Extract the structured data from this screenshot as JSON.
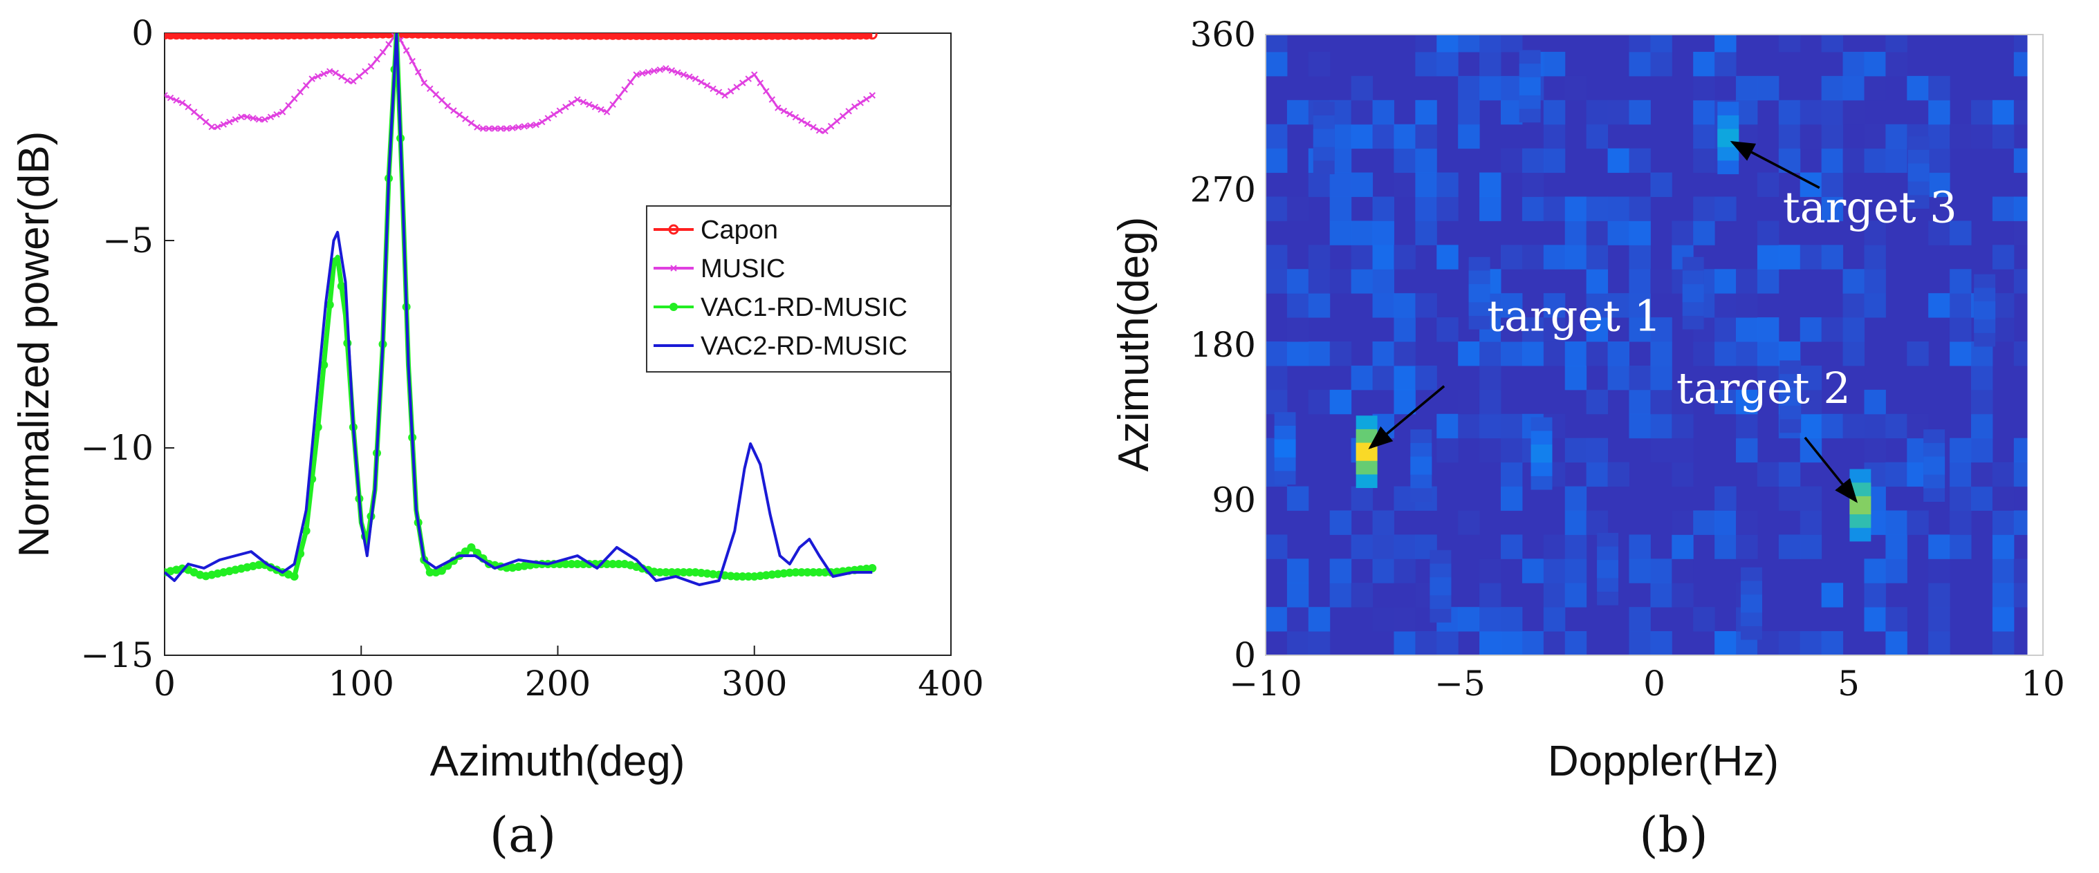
{
  "chart_data": [
    {
      "type": "line",
      "panel_label": "(a)",
      "xlabel": "Azimuth(deg)",
      "ylabel": "Normalized power(dB)",
      "xlim": [
        0,
        400
      ],
      "ylim": [
        -15,
        0
      ],
      "xticks": [
        0,
        100,
        200,
        300,
        400
      ],
      "yticks": [
        0,
        -5,
        -10,
        -15
      ],
      "xtick_labels": [
        "0",
        "100",
        "200",
        "300",
        "400"
      ],
      "ytick_labels": [
        "0",
        "−5",
        "−10",
        "−15"
      ],
      "legend_position": "right-middle",
      "series": [
        {
          "name": "Capon",
          "color": "#ff2020",
          "marker": "circle",
          "x": [
            0,
            60,
            118,
            180,
            240,
            300,
            360
          ],
          "y": [
            -0.03,
            -0.03,
            0,
            -0.03,
            -0.04,
            -0.04,
            -0.03
          ]
        },
        {
          "name": "MUSIC",
          "color": "#e040e0",
          "marker": "x",
          "x": [
            0,
            10,
            25,
            40,
            50,
            60,
            75,
            85,
            95,
            105,
            112,
            118,
            124,
            132,
            145,
            160,
            175,
            190,
            210,
            225,
            240,
            255,
            270,
            285,
            300,
            312,
            320,
            335,
            350,
            360
          ],
          "y": [
            -1.5,
            -1.7,
            -2.3,
            -2.0,
            -2.1,
            -1.9,
            -1.1,
            -0.9,
            -1.2,
            -0.8,
            -0.4,
            0,
            -0.5,
            -1.2,
            -1.8,
            -2.3,
            -2.3,
            -2.2,
            -1.6,
            -1.9,
            -1.0,
            -0.85,
            -1.1,
            -1.5,
            -1.0,
            -1.8,
            -2.0,
            -2.4,
            -1.8,
            -1.5
          ]
        },
        {
          "name": "VAC1-RD-MUSIC",
          "color": "#22ee22",
          "marker": "dot",
          "x": [
            0,
            10,
            20,
            30,
            40,
            50,
            60,
            66,
            72,
            78,
            82,
            86,
            88,
            92,
            96,
            100,
            103,
            107,
            111,
            114,
            118,
            121,
            124,
            128,
            132,
            135,
            140,
            150,
            156,
            165,
            175,
            190,
            205,
            220,
            235,
            250,
            270,
            290,
            300,
            320,
            340,
            360
          ],
          "y": [
            -13.0,
            -12.9,
            -13.1,
            -13.0,
            -12.9,
            -12.8,
            -13.0,
            -13.1,
            -12.0,
            -9.5,
            -7.5,
            -5.6,
            -5.4,
            -6.8,
            -9.5,
            -11.8,
            -12.3,
            -11.0,
            -7.5,
            -3.5,
            0,
            -3.8,
            -8.0,
            -11.5,
            -12.7,
            -13.0,
            -13.0,
            -12.6,
            -12.4,
            -12.8,
            -12.9,
            -12.8,
            -12.8,
            -12.8,
            -12.8,
            -13.0,
            -13.0,
            -13.1,
            -13.1,
            -13.0,
            -13.0,
            -12.9
          ]
        },
        {
          "name": "VAC2-RD-MUSIC",
          "color": "#1a1ad6",
          "marker": "none",
          "x": [
            0,
            5,
            12,
            20,
            28,
            36,
            44,
            52,
            60,
            66,
            72,
            78,
            82,
            86,
            88,
            92,
            96,
            100,
            103,
            107,
            111,
            114,
            118,
            121,
            124,
            128,
            132,
            138,
            150,
            158,
            168,
            180,
            195,
            210,
            220,
            230,
            240,
            250,
            260,
            272,
            282,
            290,
            295,
            298,
            303,
            308,
            313,
            318,
            323,
            328,
            333,
            340,
            350,
            360
          ],
          "y": [
            -13.0,
            -13.2,
            -12.8,
            -12.9,
            -12.7,
            -12.6,
            -12.5,
            -12.8,
            -13.0,
            -12.8,
            -11.5,
            -8.5,
            -6.5,
            -5.0,
            -4.8,
            -6.0,
            -9.5,
            -11.8,
            -12.6,
            -11.0,
            -7.5,
            -3.5,
            0,
            -3.8,
            -8.0,
            -11.5,
            -12.7,
            -12.9,
            -12.6,
            -12.6,
            -12.9,
            -12.7,
            -12.8,
            -12.6,
            -12.9,
            -12.4,
            -12.7,
            -13.2,
            -13.1,
            -13.3,
            -13.2,
            -12.0,
            -10.5,
            -9.9,
            -10.4,
            -11.6,
            -12.6,
            -12.8,
            -12.4,
            -12.2,
            -12.6,
            -13.1,
            -13.0,
            -13.0
          ]
        }
      ]
    },
    {
      "type": "heatmap",
      "panel_label": "(b)",
      "xlabel": "Doppler(Hz)",
      "ylabel": "Azimuth(deg)",
      "xlim": [
        -10,
        10
      ],
      "ylim": [
        0,
        360
      ],
      "xticks": [
        -10,
        -5,
        0,
        5,
        10
      ],
      "yticks": [
        0,
        90,
        180,
        270,
        360
      ],
      "xtick_labels": [
        "−10",
        "−5",
        "0",
        "5",
        "10"
      ],
      "ytick_labels": [
        "0",
        "90",
        "180",
        "270",
        "360"
      ],
      "colormap": "parula",
      "background_color": "#3535b8",
      "targets": [
        {
          "label": "target 1",
          "doppler": -7.4,
          "azimuth": 118,
          "intensity": 1.0
        },
        {
          "label": "target 2",
          "doppler": 5.3,
          "azimuth": 87,
          "intensity": 0.8
        },
        {
          "label": "target 3",
          "doppler": 1.9,
          "azimuth": 300,
          "intensity": 0.45
        }
      ],
      "sidelobes": [
        {
          "doppler": -9.5,
          "azimuth": 120,
          "intensity": 0.25
        },
        {
          "doppler": -2.9,
          "azimuth": 117,
          "intensity": 0.3
        },
        {
          "doppler": -6.0,
          "azimuth": 110,
          "intensity": 0.2
        },
        {
          "doppler": -4.5,
          "azimuth": 210,
          "intensity": 0.18
        },
        {
          "doppler": 1.0,
          "azimuth": 210,
          "intensity": 0.15
        },
        {
          "doppler": 3.5,
          "azimuth": 150,
          "intensity": 0.15
        },
        {
          "doppler": -1.2,
          "azimuth": 50,
          "intensity": 0.15
        },
        {
          "doppler": -5.5,
          "azimuth": 40,
          "intensity": 0.15
        },
        {
          "doppler": 7.2,
          "azimuth": 110,
          "intensity": 0.18
        },
        {
          "doppler": -3.2,
          "azimuth": 330,
          "intensity": 0.2
        },
        {
          "doppler": 6.8,
          "azimuth": 280,
          "intensity": 0.15
        },
        {
          "doppler": -8.5,
          "azimuth": 300,
          "intensity": 0.15
        },
        {
          "doppler": 2.5,
          "azimuth": 30,
          "intensity": 0.15
        },
        {
          "doppler": 8.5,
          "azimuth": 200,
          "intensity": 0.15
        }
      ]
    }
  ]
}
